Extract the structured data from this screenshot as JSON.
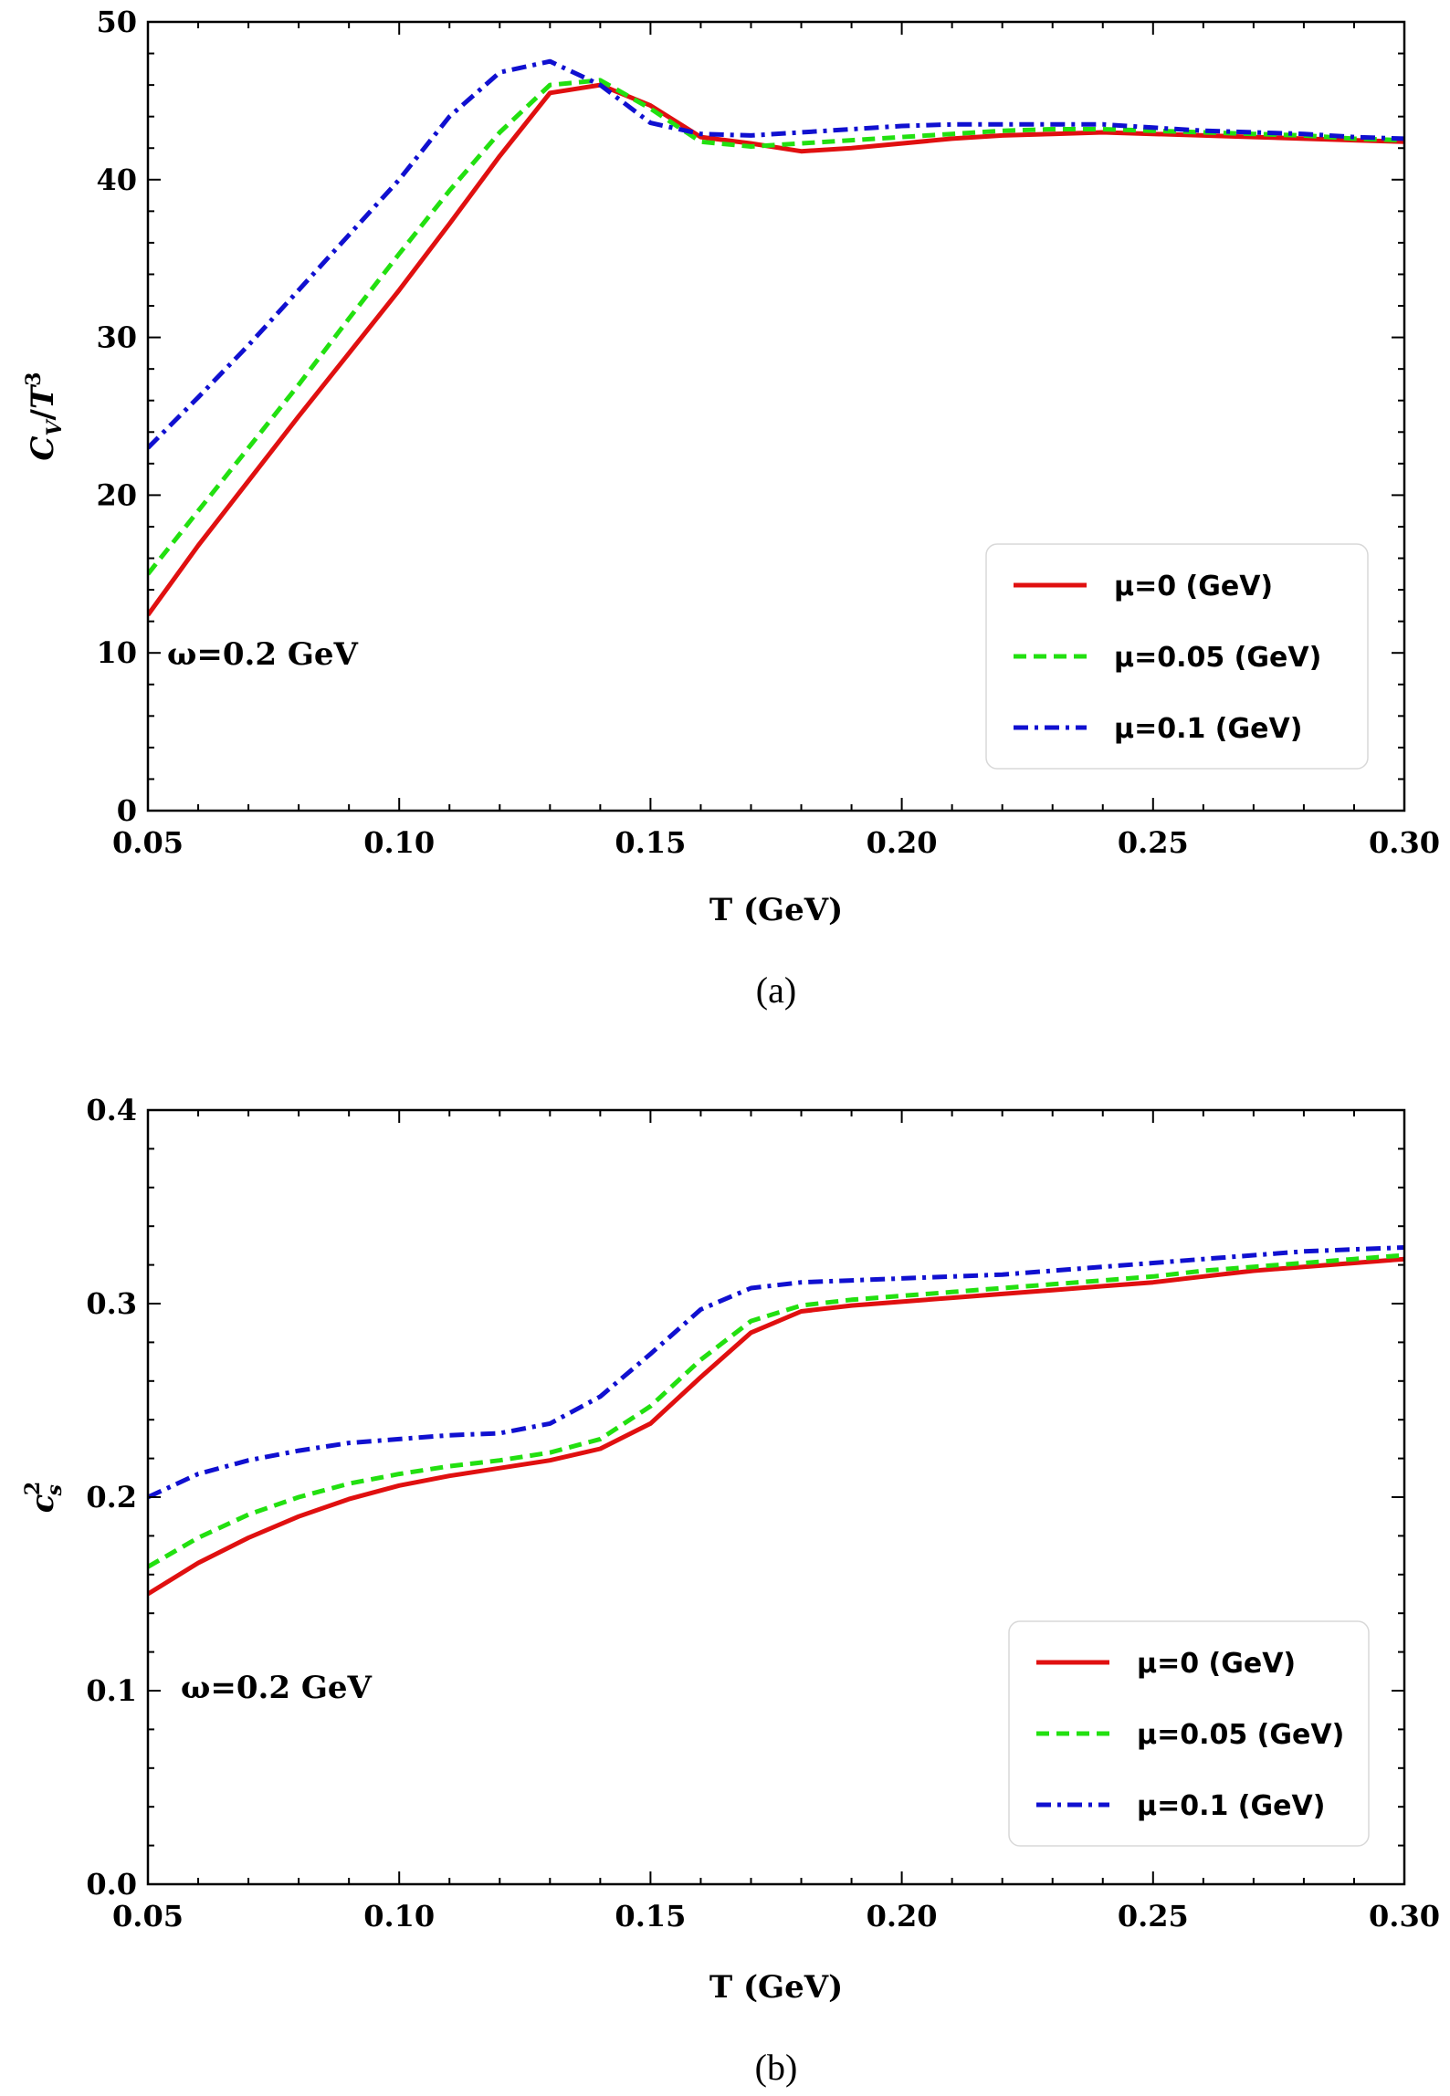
{
  "chart_data": [
    {
      "type": "line",
      "xlabel": "T (GeV)",
      "ylabel": "C_V/T^3",
      "xlim": [
        0.05,
        0.3
      ],
      "ylim": [
        0,
        50
      ],
      "xticks": [
        "0.05",
        "0.10",
        "0.15",
        "0.20",
        "0.25",
        "0.30"
      ],
      "yticks": [
        "0",
        "10",
        "20",
        "30",
        "40",
        "50"
      ],
      "annotation": "ω=0.2 GeV",
      "caption": "(a)",
      "legend_position": "bottom-right",
      "grid": false,
      "series": [
        {
          "name": "μ=0 (GeV)",
          "color": "#e01010",
          "style": "solid",
          "x": [
            0.05,
            0.06,
            0.07,
            0.08,
            0.09,
            0.1,
            0.11,
            0.12,
            0.13,
            0.14,
            0.15,
            0.16,
            0.17,
            0.18,
            0.19,
            0.2,
            0.21,
            0.22,
            0.23,
            0.24,
            0.25,
            0.26,
            0.27,
            0.28,
            0.29,
            0.3
          ],
          "y": [
            12.4,
            16.8,
            20.9,
            25.0,
            29.0,
            33.0,
            37.2,
            41.5,
            45.5,
            46.0,
            44.7,
            42.7,
            42.3,
            41.8,
            42.0,
            42.3,
            42.6,
            42.8,
            42.9,
            43.0,
            42.9,
            42.8,
            42.7,
            42.6,
            42.5,
            42.4
          ]
        },
        {
          "name": "μ=0.05 (GeV)",
          "color": "#22e010",
          "style": "dashed",
          "x": [
            0.05,
            0.06,
            0.07,
            0.08,
            0.09,
            0.1,
            0.11,
            0.12,
            0.13,
            0.14,
            0.15,
            0.16,
            0.17,
            0.18,
            0.19,
            0.2,
            0.21,
            0.22,
            0.23,
            0.24,
            0.25,
            0.26,
            0.27,
            0.28,
            0.29,
            0.3
          ],
          "y": [
            15.0,
            19.0,
            23.0,
            27.0,
            31.2,
            35.3,
            39.3,
            43.0,
            46.0,
            46.3,
            44.5,
            42.4,
            42.1,
            42.3,
            42.5,
            42.7,
            42.9,
            43.1,
            43.2,
            43.2,
            43.1,
            43.0,
            42.9,
            42.8,
            42.6,
            42.5
          ]
        },
        {
          "name": "μ=0.1 (GeV)",
          "color": "#1010d0",
          "style": "dash-dot",
          "x": [
            0.05,
            0.06,
            0.07,
            0.08,
            0.09,
            0.1,
            0.11,
            0.12,
            0.13,
            0.14,
            0.15,
            0.16,
            0.17,
            0.18,
            0.19,
            0.2,
            0.21,
            0.22,
            0.23,
            0.24,
            0.25,
            0.26,
            0.27,
            0.28,
            0.29,
            0.3
          ],
          "y": [
            23.0,
            26.2,
            29.5,
            33.0,
            36.5,
            40.0,
            44.0,
            46.8,
            47.5,
            46.0,
            43.6,
            42.9,
            42.8,
            43.0,
            43.2,
            43.4,
            43.5,
            43.5,
            43.5,
            43.5,
            43.3,
            43.1,
            43.0,
            42.9,
            42.7,
            42.6
          ]
        }
      ]
    },
    {
      "type": "line",
      "xlabel": "T (GeV)",
      "ylabel": "c_s^2",
      "xlim": [
        0.05,
        0.3
      ],
      "ylim": [
        0.0,
        0.4
      ],
      "xticks": [
        "0.05",
        "0.10",
        "0.15",
        "0.20",
        "0.25",
        "0.30"
      ],
      "yticks": [
        "0.0",
        "0.1",
        "0.2",
        "0.3",
        "0.4"
      ],
      "annotation": "ω=0.2 GeV",
      "caption": "(b)",
      "legend_position": "bottom-right",
      "grid": false,
      "series": [
        {
          "name": "μ=0 (GeV)",
          "color": "#e01010",
          "style": "solid",
          "x": [
            0.05,
            0.06,
            0.07,
            0.08,
            0.09,
            0.1,
            0.11,
            0.12,
            0.13,
            0.14,
            0.15,
            0.16,
            0.17,
            0.18,
            0.19,
            0.2,
            0.21,
            0.22,
            0.23,
            0.24,
            0.25,
            0.26,
            0.27,
            0.28,
            0.29,
            0.3
          ],
          "y": [
            0.15,
            0.166,
            0.179,
            0.19,
            0.199,
            0.206,
            0.211,
            0.215,
            0.219,
            0.225,
            0.238,
            0.262,
            0.285,
            0.296,
            0.299,
            0.301,
            0.303,
            0.305,
            0.307,
            0.309,
            0.311,
            0.314,
            0.317,
            0.319,
            0.321,
            0.323
          ]
        },
        {
          "name": "μ=0.05 (GeV)",
          "color": "#22e010",
          "style": "dashed",
          "x": [
            0.05,
            0.06,
            0.07,
            0.08,
            0.09,
            0.1,
            0.11,
            0.12,
            0.13,
            0.14,
            0.15,
            0.16,
            0.17,
            0.18,
            0.19,
            0.2,
            0.21,
            0.22,
            0.23,
            0.24,
            0.25,
            0.26,
            0.27,
            0.28,
            0.29,
            0.3
          ],
          "y": [
            0.164,
            0.179,
            0.191,
            0.2,
            0.207,
            0.212,
            0.216,
            0.219,
            0.223,
            0.23,
            0.247,
            0.271,
            0.291,
            0.299,
            0.302,
            0.304,
            0.306,
            0.308,
            0.31,
            0.312,
            0.314,
            0.317,
            0.319,
            0.321,
            0.323,
            0.325
          ]
        },
        {
          "name": "μ=0.1 (GeV)",
          "color": "#1010d0",
          "style": "dash-dot",
          "x": [
            0.05,
            0.06,
            0.07,
            0.08,
            0.09,
            0.1,
            0.11,
            0.12,
            0.13,
            0.14,
            0.15,
            0.16,
            0.17,
            0.18,
            0.19,
            0.2,
            0.21,
            0.22,
            0.23,
            0.24,
            0.25,
            0.26,
            0.27,
            0.28,
            0.29,
            0.3
          ],
          "y": [
            0.2,
            0.212,
            0.219,
            0.224,
            0.228,
            0.23,
            0.232,
            0.233,
            0.238,
            0.252,
            0.274,
            0.297,
            0.308,
            0.311,
            0.312,
            0.313,
            0.314,
            0.315,
            0.317,
            0.319,
            0.321,
            0.323,
            0.325,
            0.327,
            0.328,
            0.329
          ]
        }
      ]
    }
  ]
}
